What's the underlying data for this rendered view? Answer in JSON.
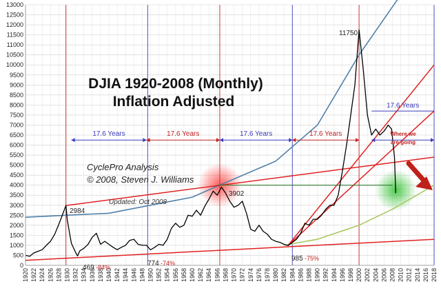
{
  "chart_data": {
    "type": "line",
    "title": "DJIA 1920-2008  (Monthly)",
    "subtitle": "Inflation Adjusted",
    "xlabel": "",
    "ylabel": "",
    "xlim": [
      1920,
      2018
    ],
    "ylim": [
      0,
      13000
    ],
    "y_ticks": [
      0,
      500,
      1000,
      1500,
      2000,
      2500,
      3000,
      3500,
      4000,
      4500,
      5000,
      5500,
      6000,
      6500,
      7000,
      7500,
      8000,
      8500,
      9000,
      9500,
      10000,
      10500,
      11000,
      11500,
      12000,
      12500,
      13000
    ],
    "x_ticks": [
      1920,
      1922,
      1924,
      1926,
      1928,
      1930,
      1932,
      1934,
      1936,
      1938,
      1940,
      1942,
      1944,
      1946,
      1948,
      1950,
      1952,
      1954,
      1956,
      1958,
      1960,
      1962,
      1964,
      1966,
      1968,
      1970,
      1972,
      1974,
      1976,
      1978,
      1980,
      1982,
      1984,
      1986,
      1988,
      1990,
      1992,
      1994,
      1996,
      1998,
      2000,
      2002,
      2004,
      2006,
      2008,
      2010,
      2012,
      2014,
      2016,
      2018
    ],
    "grid": true,
    "series": [
      {
        "name": "DJIA (inflation adjusted)",
        "x": [
          1920,
          1921,
          1922,
          1923,
          1924,
          1925,
          1926,
          1927,
          1928,
          1929,
          1929.7,
          1930,
          1930.5,
          1931,
          1932,
          1932.5,
          1933,
          1934,
          1935,
          1936,
          1937,
          1938,
          1939,
          1940,
          1941,
          1942,
          1943,
          1944,
          1945,
          1946,
          1947,
          1948,
          1949,
          1950,
          1951,
          1952,
          1953,
          1954,
          1955,
          1956,
          1957,
          1958,
          1959,
          1960,
          1961,
          1962,
          1963,
          1964,
          1965,
          1966,
          1967,
          1968,
          1969,
          1970,
          1971,
          1972,
          1973,
          1974,
          1975,
          1976,
          1977,
          1978,
          1979,
          1980,
          1981,
          1982,
          1983,
          1984,
          1985,
          1986,
          1987,
          1988,
          1989,
          1990,
          1991,
          1992,
          1993,
          1994,
          1995,
          1996,
          1997,
          1998,
          1999,
          2000,
          2001,
          2002,
          2003,
          2004,
          2005,
          2006,
          2007,
          2007.8,
          2008.5,
          2008.8
        ],
        "y": [
          500,
          450,
          620,
          700,
          780,
          1000,
          1200,
          1550,
          2050,
          2600,
          2984,
          2300,
          1700,
          1100,
          650,
          469,
          720,
          850,
          1050,
          1400,
          1600,
          1050,
          1200,
          1050,
          900,
          780,
          900,
          1000,
          1250,
          1300,
          1050,
          1000,
          1000,
          774,
          900,
          1050,
          1000,
          1300,
          1850,
          2100,
          1900,
          2000,
          2500,
          2450,
          2750,
          2500,
          2950,
          3300,
          3700,
          3500,
          3902,
          3600,
          3200,
          2900,
          3000,
          3200,
          2600,
          1800,
          1700,
          2000,
          1700,
          1550,
          1300,
          1200,
          1150,
          1050,
          985,
          1150,
          1300,
          1600,
          2100,
          2000,
          2300,
          2300,
          2500,
          2800,
          3000,
          3000,
          3500,
          4700,
          6000,
          7500,
          9000,
          11750,
          9800,
          7500,
          6500,
          6800,
          6500,
          6700,
          7000,
          6800,
          5400,
          3600
        ]
      }
    ],
    "reference_curves": [
      {
        "name": "exponential blue",
        "x": [
          1920,
          1940,
          1960,
          1966,
          1980,
          1990,
          2000,
          2010,
          2018
        ],
        "y": [
          2400,
          2600,
          3400,
          3950,
          5200,
          7000,
          10500,
          13500,
          16000
        ]
      },
      {
        "name": "exponential green",
        "x": [
          1982,
          1990,
          2000,
          2008,
          2018
        ],
        "y": [
          1000,
          1300,
          2000,
          2800,
          4000
        ]
      },
      {
        "name": "red bottom trendline",
        "x": [
          1920,
          2018
        ],
        "y": [
          250,
          1300
        ]
      },
      {
        "name": "red upper trendline",
        "x": [
          1929.7,
          2018
        ],
        "y": [
          2984,
          5400
        ]
      },
      {
        "name": "red line 2",
        "x": [
          1983,
          2018
        ],
        "y": [
          1000,
          7700
        ]
      },
      {
        "name": "red line 3",
        "x": [
          1983,
          2018
        ],
        "y": [
          1000,
          10000
        ]
      },
      {
        "name": "green horizontal",
        "x": [
          1966,
          2008
        ],
        "y": [
          4000,
          4000
        ]
      }
    ],
    "cycles": [
      {
        "label": "17.6 Years",
        "from": 1931,
        "to": 1949,
        "color": "#3a3ab8"
      },
      {
        "label": "17.6 Years",
        "from": 1949,
        "to": 1966.6,
        "color": "#c02020"
      },
      {
        "label": "17.6 Years",
        "from": 1966.6,
        "to": 1984,
        "color": "#3a3ab8"
      },
      {
        "label": "17.6 Years",
        "from": 1984,
        "to": 2000,
        "color": "#c02020"
      },
      {
        "label": "17.6 Years",
        "from": 2003,
        "to": 2018,
        "color": "#3a3ab8"
      }
    ],
    "cycle_lines": [
      {
        "year": 1929.7,
        "color": "#c02020"
      },
      {
        "year": 1949.3,
        "color": "#3a3ab8"
      },
      {
        "year": 1966.6,
        "color": "#c02020"
      },
      {
        "year": 1984.0,
        "color": "#3a3ab8"
      },
      {
        "year": 2000.0,
        "color": "#c02020"
      },
      {
        "year": 2018.0,
        "color": "#3a3ab8"
      }
    ],
    "annotations": {
      "peak_1929": "2984",
      "peak_1966": "3902",
      "peak_2000": "11750",
      "low_1932": "469",
      "low_1932_pct": "-84%",
      "low_1949": "774",
      "low_1949_pct": "-74%",
      "low_1982": "985",
      "low_1982_pct": "-75%",
      "credit1": "CyclePro Analysis",
      "credit2": "© 2008,  Steven J. Williams",
      "updated": "Updated: Oct 2008",
      "going1": "Where we",
      "going2": "are going"
    },
    "colors": {
      "series": "#000000",
      "blue_curve": "#4f7fa8",
      "green_curve": "#a8c860",
      "red": "#e02020",
      "cycle_blue": "#3a3ab8",
      "cycle_red": "#c02020"
    }
  }
}
